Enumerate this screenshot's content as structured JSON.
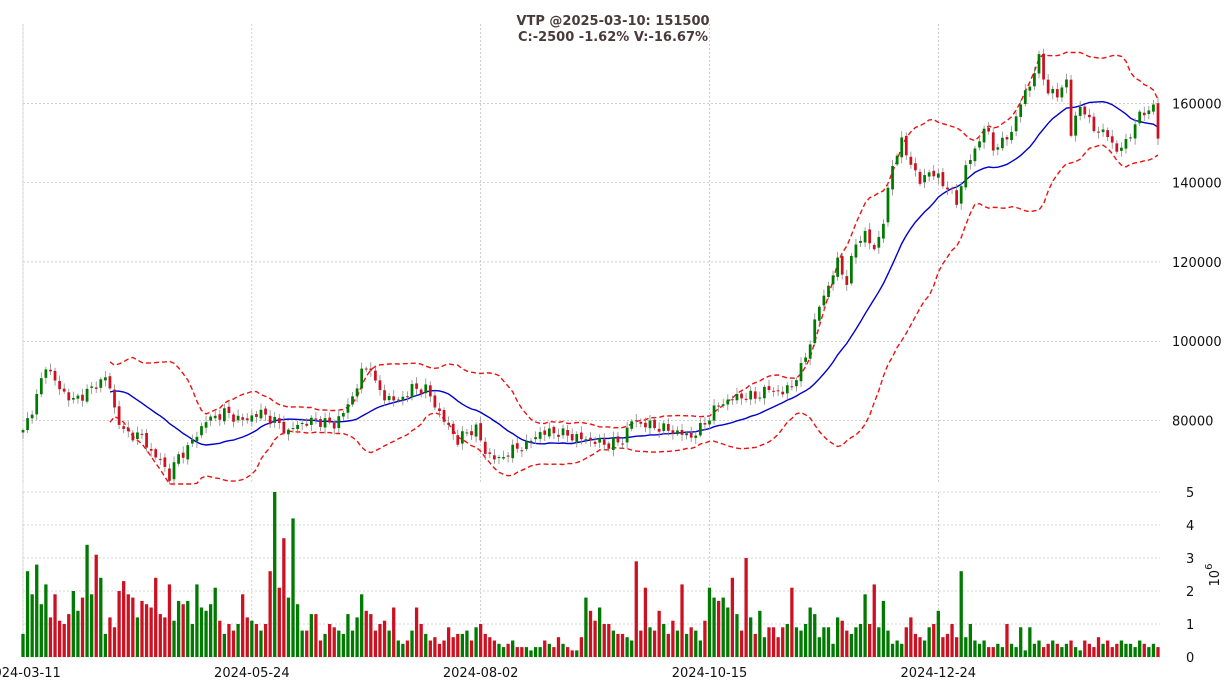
{
  "chart_data": {
    "type": "candlestick",
    "title_line1": "VTP @2025-03-10: 151500",
    "title_line2": "C:-2500 -1.62% V:-16.67%",
    "colors": {
      "up": "#007a00",
      "down": "#cc1122",
      "ma": "#0000cc",
      "band": "#ee1111",
      "grid": "#b0b0b0"
    },
    "x_tick_labels": [
      "2024-03-11",
      "2024-05-24",
      "2024-08-02",
      "2024-10-15",
      "2024-12-24"
    ],
    "x_tick_index": [
      0,
      50,
      100,
      150,
      200
    ],
    "price_axis": {
      "min": 64000,
      "max": 180000,
      "ticks": [
        80000,
        100000,
        120000,
        140000,
        160000
      ]
    },
    "volume_axis": {
      "min": 0,
      "max": 5,
      "ticks": [
        0,
        1,
        2,
        3,
        4,
        5
      ],
      "exponent_label": "10",
      "exponent_power": "6"
    },
    "volume_unit": 1000000,
    "anchors": [
      [
        0,
        77000
      ],
      [
        3,
        86000
      ],
      [
        5,
        94000
      ],
      [
        8,
        88000
      ],
      [
        11,
        85000
      ],
      [
        15,
        88000
      ],
      [
        18,
        91000
      ],
      [
        19,
        88000
      ],
      [
        20,
        83000
      ],
      [
        22,
        77000
      ],
      [
        26,
        76000
      ],
      [
        28,
        72000
      ],
      [
        30,
        70000
      ],
      [
        32,
        66000
      ],
      [
        34,
        71000
      ],
      [
        36,
        73000
      ],
      [
        40,
        80000
      ],
      [
        44,
        82000
      ],
      [
        48,
        80000
      ],
      [
        52,
        82000
      ],
      [
        56,
        79000
      ],
      [
        58,
        77000
      ],
      [
        60,
        79000
      ],
      [
        64,
        80000
      ],
      [
        68,
        79000
      ],
      [
        70,
        82000
      ],
      [
        72,
        86000
      ],
      [
        74,
        92000
      ],
      [
        76,
        94000
      ],
      [
        77,
        89000
      ],
      [
        79,
        86000
      ],
      [
        82,
        85000
      ],
      [
        85,
        88000
      ],
      [
        88,
        88000
      ],
      [
        90,
        84000
      ],
      [
        92,
        80000
      ],
      [
        95,
        75000
      ],
      [
        97,
        77000
      ],
      [
        99,
        78000
      ],
      [
        101,
        72000
      ],
      [
        104,
        70000
      ],
      [
        106,
        72000
      ],
      [
        110,
        74000
      ],
      [
        113,
        77000
      ],
      [
        117,
        77000
      ],
      [
        120,
        76000
      ],
      [
        124,
        75000
      ],
      [
        128,
        74000
      ],
      [
        131,
        75000
      ],
      [
        133,
        80000
      ],
      [
        136,
        79000
      ],
      [
        140,
        78000
      ],
      [
        143,
        77000
      ],
      [
        146,
        76000
      ],
      [
        148,
        78000
      ],
      [
        152,
        84000
      ],
      [
        156,
        86000
      ],
      [
        160,
        86000
      ],
      [
        163,
        88000
      ],
      [
        166,
        87000
      ],
      [
        168,
        89000
      ],
      [
        170,
        93000
      ],
      [
        172,
        100000
      ],
      [
        174,
        109000
      ],
      [
        176,
        114000
      ],
      [
        178,
        120000
      ],
      [
        180,
        115000
      ],
      [
        182,
        125000
      ],
      [
        184,
        127000
      ],
      [
        186,
        123000
      ],
      [
        188,
        130000
      ],
      [
        190,
        145000
      ],
      [
        192,
        150000
      ],
      [
        194,
        145000
      ],
      [
        196,
        140000
      ],
      [
        198,
        143000
      ],
      [
        200,
        141000
      ],
      [
        202,
        139000
      ],
      [
        204,
        135000
      ],
      [
        206,
        144000
      ],
      [
        208,
        148000
      ],
      [
        210,
        154000
      ],
      [
        212,
        149000
      ],
      [
        214,
        150000
      ],
      [
        216,
        153000
      ],
      [
        218,
        160000
      ],
      [
        220,
        165000
      ],
      [
        222,
        171000
      ],
      [
        224,
        163000
      ],
      [
        226,
        162000
      ],
      [
        228,
        166000
      ],
      [
        229,
        152000
      ],
      [
        231,
        160000
      ],
      [
        233,
        155000
      ],
      [
        235,
        153000
      ],
      [
        237,
        152000
      ],
      [
        239,
        148000
      ],
      [
        241,
        150000
      ],
      [
        243,
        155000
      ],
      [
        245,
        158000
      ],
      [
        247,
        159000
      ],
      [
        248,
        151500
      ]
    ],
    "volume_levels": [
      0.7,
      2.6,
      1.9,
      2.8,
      1.6,
      2.2,
      1.2,
      1.9,
      1.1,
      1.0,
      1.3,
      2.0,
      1.4,
      1.8,
      3.4,
      1.9,
      3.1,
      2.4,
      0.7,
      1.2,
      0.9,
      2.0,
      2.3,
      1.9,
      1.8,
      1.2,
      1.7,
      1.6,
      1.5,
      2.4,
      1.3,
      1.2,
      2.2,
      1.1,
      1.7,
      1.6,
      1.7,
      1.0,
      2.2,
      1.5,
      1.4,
      1.6,
      2.1,
      1.1,
      0.7,
      1.0,
      0.8,
      1.0,
      1.9,
      1.2,
      1.1,
      1.0,
      0.8,
      1.0,
      2.6,
      5.0,
      2.1,
      3.6,
      1.8,
      4.2,
      1.6,
      0.8,
      0.8,
      1.3,
      1.3,
      0.5,
      0.7,
      1.0,
      0.9,
      0.8,
      0.7,
      1.3,
      0.8,
      1.2,
      1.9,
      1.4,
      1.3,
      0.8,
      1.0,
      1.1,
      0.8,
      1.5,
      0.5,
      0.4,
      0.5,
      0.8,
      1.5,
      1.0,
      0.7,
      0.5,
      0.6,
      0.4,
      0.5,
      0.9,
      0.6,
      0.7,
      0.7,
      0.8,
      0.5,
      0.9,
      1.0,
      0.7,
      0.6,
      0.5,
      0.4,
      0.3,
      0.4,
      0.5,
      0.3,
      0.3,
      0.3,
      0.2,
      0.3,
      0.3,
      0.5,
      0.4,
      0.3,
      0.6,
      0.4,
      0.3,
      0.2,
      0.2,
      0.6,
      1.8,
      1.4,
      1.1,
      1.5,
      1.0,
      1.0,
      0.8,
      0.7,
      0.7,
      0.6,
      0.5,
      2.9,
      0.8,
      2.1,
      0.9,
      0.8,
      1.4,
      1.0,
      0.7,
      1.1,
      0.8,
      2.2,
      0.7,
      0.9,
      0.8,
      0.5,
      1.1,
      2.1,
      1.8,
      1.7,
      1.8,
      1.5,
      2.4,
      1.3,
      0.8,
      3.0,
      1.2,
      0.7,
      1.4,
      0.6,
      0.9,
      0.9,
      0.6,
      0.9,
      1.0,
      2.1,
      0.9,
      0.8,
      1.0,
      1.5,
      1.3,
      0.6,
      0.9,
      0.9,
      0.4,
      1.2,
      1.1,
      0.8,
      0.7,
      0.9,
      1.0,
      1.9,
      1.0,
      2.2,
      0.9,
      1.7,
      0.8,
      0.4,
      0.5,
      0.4,
      0.9,
      1.2,
      0.7,
      0.6,
      0.5,
      0.9,
      1.0,
      1.4,
      0.6,
      0.7,
      1.0,
      0.6,
      2.6,
      0.6,
      1.0,
      0.5,
      0.4,
      0.5,
      0.3,
      0.3,
      0.4,
      0.3,
      1.0,
      0.4,
      0.3,
      0.9,
      0.2,
      0.9,
      0.4,
      0.5,
      0.3,
      0.4,
      0.5,
      0.4,
      0.3,
      0.4,
      0.5,
      0.3,
      0.2,
      0.5,
      0.4,
      0.3,
      0.6,
      0.4,
      0.5,
      0.3,
      0.4,
      0.5,
      0.4,
      0.4,
      0.3,
      0.5,
      0.4,
      0.3,
      0.4,
      0.3
    ],
    "ma_period": 20,
    "band_width_std": 2
  }
}
